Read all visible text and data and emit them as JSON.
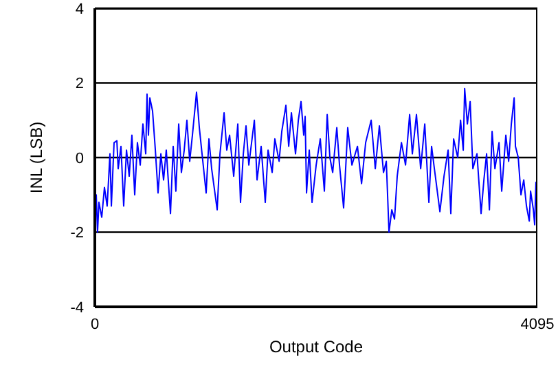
{
  "chart_data": {
    "type": "line",
    "xlabel": "Output Code",
    "ylabel": "INL (LSB)",
    "xlim": [
      0,
      4095
    ],
    "ylim": [
      -4,
      4
    ],
    "xticks": [
      0,
      4095
    ],
    "yticks": [
      -4,
      -2,
      0,
      2,
      4
    ],
    "grid": "y",
    "legend": false,
    "marker": "none",
    "line_style": "solid",
    "series": [
      {
        "color": "#0000ff",
        "x": [
          0,
          13,
          25,
          38,
          64,
          89,
          114,
          140,
          153,
          178,
          204,
          216,
          242,
          267,
          293,
          318,
          343,
          369,
          394,
          420,
          445,
          471,
          483,
          496,
          509,
          534,
          560,
          585,
          611,
          636,
          661,
          700,
          725,
          750,
          776,
          801,
          827,
          852,
          878,
          903,
          941,
          967,
          992,
          1030,
          1056,
          1081,
          1132,
          1158,
          1196,
          1221,
          1247,
          1285,
          1323,
          1348,
          1374,
          1399,
          1425,
          1476,
          1501,
          1539,
          1577,
          1603,
          1641,
          1666,
          1705,
          1730,
          1768,
          1794,
          1819,
          1857,
          1883,
          1908,
          1933,
          1946,
          1959,
          1984,
          2010,
          2048,
          2086,
          2124,
          2150,
          2175,
          2201,
          2239,
          2264,
          2302,
          2328,
          2340,
          2379,
          2430,
          2468,
          2506,
          2557,
          2595,
          2633,
          2671,
          2697,
          2722,
          2748,
          2773,
          2798,
          2837,
          2875,
          2913,
          2938,
          2976,
          3015,
          3053,
          3091,
          3116,
          3142,
          3193,
          3231,
          3269,
          3294,
          3320,
          3358,
          3384,
          3409,
          3422,
          3447,
          3473,
          3498,
          3536,
          3574,
          3600,
          3625,
          3651,
          3676,
          3702,
          3740,
          3765,
          3803,
          3829,
          3854,
          3880,
          3892,
          3918,
          3943,
          3969,
          3994,
          4020,
          4032,
          4058,
          4070,
          4082
        ],
        "values": [
          -1.5,
          -1.0,
          -2.0,
          -1.2,
          -1.6,
          -0.8,
          -1.3,
          0.1,
          -1.3,
          0.4,
          0.45,
          -0.3,
          0.3,
          -1.3,
          0.2,
          -0.5,
          0.6,
          -1.0,
          0.4,
          -0.2,
          0.9,
          0.1,
          1.7,
          0.6,
          1.6,
          1.25,
          0.2,
          -0.95,
          0.1,
          -0.6,
          0.2,
          -1.5,
          0.3,
          -0.9,
          0.9,
          -0.4,
          0.2,
          1.0,
          -0.1,
          0.6,
          1.75,
          0.8,
          0.1,
          -0.95,
          0.5,
          -0.3,
          -1.4,
          0.1,
          1.2,
          0.2,
          0.6,
          -0.5,
          0.9,
          -1.2,
          0.1,
          0.85,
          -0.2,
          1.0,
          -0.6,
          0.3,
          -1.2,
          0.2,
          -0.4,
          0.5,
          -0.1,
          0.7,
          1.4,
          0.3,
          1.2,
          0.1,
          1.0,
          1.5,
          0.6,
          1.1,
          -0.95,
          0.2,
          -1.2,
          -0.2,
          0.5,
          -0.9,
          1.15,
          0.0,
          -0.4,
          0.8,
          -0.2,
          -1.35,
          0.1,
          0.8,
          -0.2,
          0.3,
          -0.7,
          0.4,
          1.0,
          -0.3,
          0.85,
          -0.4,
          -0.1,
          -2.0,
          -1.4,
          -1.65,
          -0.5,
          0.4,
          -0.2,
          1.15,
          0.1,
          1.15,
          -0.3,
          0.9,
          -1.2,
          0.3,
          -0.3,
          -1.45,
          -0.5,
          0.2,
          -1.5,
          0.5,
          0.0,
          1.0,
          0.2,
          1.85,
          0.9,
          1.5,
          -0.3,
          0.1,
          -1.5,
          -0.6,
          0.1,
          -1.4,
          0.7,
          -0.3,
          0.4,
          -0.9,
          0.6,
          -0.1,
          0.9,
          1.6,
          0.3,
          0.0,
          -1.0,
          -0.6,
          -1.3,
          -1.7,
          -0.9,
          -1.4,
          -1.8,
          -0.65
        ]
      }
    ]
  }
}
